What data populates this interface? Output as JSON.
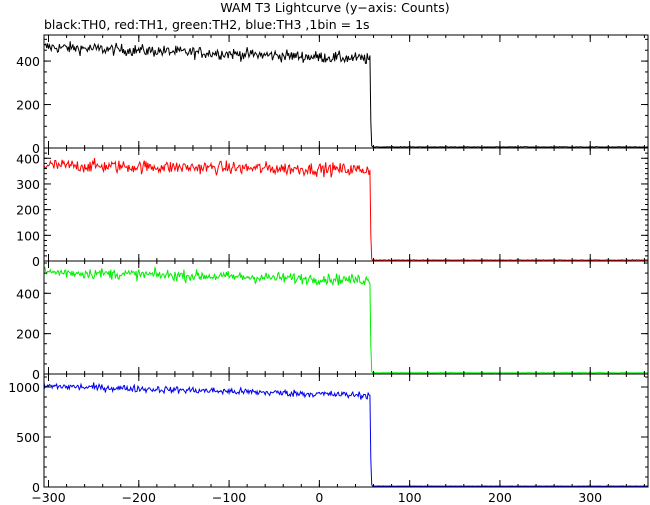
{
  "chart_data": {
    "type": "line",
    "title": "WAM T3 Lightcurve (y−axis: Counts)",
    "subtitle": "black:TH0, red:TH1, green:TH2, blue:TH3 ,1bin = 1s",
    "xlabel": "",
    "ylabel": "",
    "xlim": [
      -305,
      364
    ],
    "x_ticks": [
      -300,
      -200,
      -100,
      0,
      100,
      200,
      300
    ],
    "x_tick_labels": [
      "−300",
      "−200",
      "−100",
      "0",
      "100",
      "200",
      "300"
    ],
    "grid": false,
    "bin_seconds": 1,
    "drop_time": 57,
    "series": [
      {
        "name": "TH0",
        "color": "#000000",
        "ylim": [
          0,
          520
        ],
        "y_ticks": [
          0,
          200,
          400
        ],
        "level_start": 465,
        "level_end": 410,
        "noise": 32,
        "tail_value": 120,
        "after_value": 4
      },
      {
        "name": "TH1",
        "color": "#ff0000",
        "ylim": [
          0,
          440
        ],
        "y_ticks": [
          0,
          100,
          200,
          300,
          400
        ],
        "level_start": 372,
        "level_end": 355,
        "noise": 30,
        "tail_value": 100,
        "after_value": 3
      },
      {
        "name": "TH2",
        "color": "#00ee00",
        "ylim": [
          0,
          560
        ],
        "y_ticks": [
          0,
          200,
          400
        ],
        "level_start": 505,
        "level_end": 465,
        "noise": 32,
        "tail_value": 140,
        "after_value": 5
      },
      {
        "name": "TH3",
        "color": "#0000ee",
        "ylim": [
          0,
          1130
        ],
        "y_ticks": [
          0,
          500,
          1000
        ],
        "level_start": 1010,
        "level_end": 915,
        "noise": 42,
        "tail_value": 270,
        "after_value": 8
      }
    ]
  }
}
